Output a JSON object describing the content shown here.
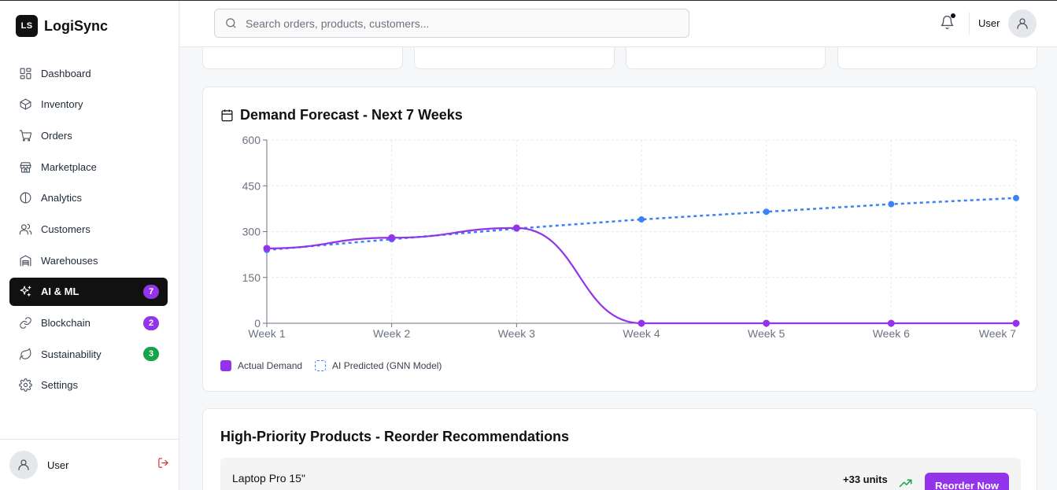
{
  "brand": {
    "logo": "LS",
    "name": "LogiSync"
  },
  "sidebar": {
    "items": [
      {
        "label": "Dashboard",
        "icon": "dashboard-icon"
      },
      {
        "label": "Inventory",
        "icon": "box-icon"
      },
      {
        "label": "Orders",
        "icon": "cart-icon"
      },
      {
        "label": "Marketplace",
        "icon": "store-icon"
      },
      {
        "label": "Analytics",
        "icon": "analytics-icon"
      },
      {
        "label": "Customers",
        "icon": "users-icon"
      },
      {
        "label": "Warehouses",
        "icon": "warehouse-icon"
      },
      {
        "label": "AI & ML",
        "icon": "sparkles-icon",
        "badge": "7",
        "active": true
      },
      {
        "label": "Blockchain",
        "icon": "link-icon",
        "badge": "2"
      },
      {
        "label": "Sustainability",
        "icon": "leaf-icon",
        "badge": "3"
      },
      {
        "label": "Settings",
        "icon": "gear-icon"
      }
    ],
    "footer_user": "User"
  },
  "header": {
    "search_placeholder": "Search orders, products, customers...",
    "user_label": "User"
  },
  "colors": {
    "accent": "#9333ea",
    "predicted": "#3b82f6",
    "badge_purple": "#9333ea",
    "badge_green": "#16a34a",
    "sidebar_active": "#111111",
    "stat_note_green": "#16a34a",
    "stat_note_blue": "#2563eb",
    "stat_note_purple": "#9333ea",
    "stat_note_orange": "#ea580c"
  },
  "forecast": {
    "title": "Demand Forecast - Next 7 Weeks",
    "legend_actual": "Actual Demand",
    "legend_predicted": "AI Predicted (GNN Model)"
  },
  "chart_data": {
    "type": "line",
    "categories": [
      "Week 1",
      "Week 2",
      "Week 3",
      "Week 4",
      "Week 5",
      "Week 6",
      "Week 7"
    ],
    "series": [
      {
        "name": "Actual Demand",
        "values": [
          245,
          280,
          312,
          0,
          0,
          0,
          0
        ],
        "style": "solid",
        "color": "#9333ea"
      },
      {
        "name": "AI Predicted (GNN Model)",
        "values": [
          240,
          275,
          310,
          340,
          365,
          390,
          410
        ],
        "style": "dashed",
        "color": "#3b82f6"
      }
    ],
    "yticks": [
      0,
      150,
      300,
      450,
      600
    ],
    "ylim": [
      0,
      600
    ],
    "grid": true,
    "legend_position": "bottom-left"
  },
  "reorder": {
    "title": "High-Priority Products - Reorder Recommendations",
    "products": [
      {
        "name": "Laptop Pro 15\"",
        "units": "+33 units",
        "button": "Reorder Now"
      }
    ]
  }
}
